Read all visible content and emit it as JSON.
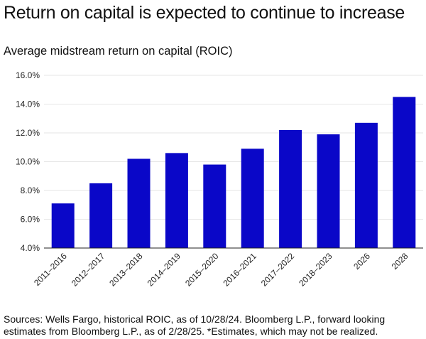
{
  "title": "Return on capital is expected to continue to increase",
  "subtitle": "Average midstream return on capital (ROIC)",
  "source": "Sources: Wells Fargo, historical ROIC, as of 10/28/24. Bloomberg L.P., forward looking estimates from Bloomberg L.P., as of 2/28/25. *Estimates, which may not be realized.",
  "colors": {
    "bar": "#0a07c8",
    "grid": "#e6e6e6",
    "axis": "#222222"
  },
  "chart_data": {
    "type": "bar",
    "categories": [
      "2011–2016",
      "2012–2017",
      "2013–2018",
      "2014–2019",
      "2015–2020",
      "2016–2021",
      "2017–2022",
      "2018–2023",
      "2026",
      "2028"
    ],
    "values": [
      7.1,
      8.5,
      10.2,
      10.6,
      9.8,
      10.9,
      12.2,
      11.9,
      12.7,
      14.5
    ],
    "ylim": [
      4,
      16
    ],
    "yticks": [
      "4.0%",
      "6.0%",
      "8.0%",
      "10.0%",
      "12.0%",
      "14.0%",
      "16.0%"
    ],
    "ytick_values": [
      4,
      6,
      8,
      10,
      12,
      14,
      16
    ],
    "xlabel": "",
    "ylabel": "",
    "grid": true,
    "legend": "none"
  }
}
